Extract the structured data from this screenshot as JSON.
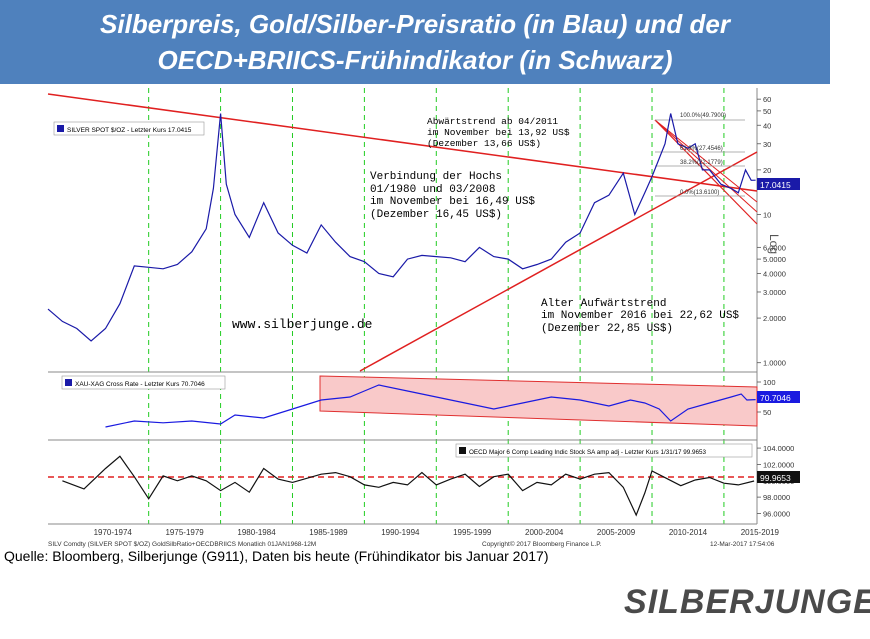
{
  "title_line1": "Silberpreis, Gold/Silber-Preisratio (in Blau) und der",
  "title_line2": "OECD+BRIICS-Frühindikator (in Schwarz)",
  "source": "Quelle: Bloomberg, Silberjunge (G911), Daten bis heute (Frühindikator bis Januar 2017)",
  "logo": "SILBERJUNGE.",
  "chart_data": {
    "type": "line",
    "x_tick_labels": [
      "1970-1974",
      "1975-1979",
      "1980-1984",
      "1985-1989",
      "1990-1994",
      "1995-1999",
      "2000-2004",
      "2005-2009",
      "2010-2014",
      "2015-2019"
    ],
    "panels": [
      {
        "name": "silver",
        "legend": "SILVER SPOT $/OZ - Letzter Kurs 17.0415",
        "scale": "log",
        "y_ticks": [
          "60",
          "50",
          "40",
          "30",
          "20",
          "10",
          "6.0000",
          "5.0000",
          "4.0000",
          "3.0000",
          "2.0000",
          "1.0000"
        ],
        "y_axis_label": "Log",
        "last_value_label": "17.0415",
        "series_points": [
          [
            1968.0,
            2.3
          ],
          [
            1969.0,
            1.9
          ],
          [
            1970.0,
            1.7
          ],
          [
            1971.0,
            1.4
          ],
          [
            1972.0,
            1.7
          ],
          [
            1973.0,
            2.5
          ],
          [
            1974.0,
            4.5
          ],
          [
            1975.0,
            4.4
          ],
          [
            1976.0,
            4.3
          ],
          [
            1977.0,
            4.6
          ],
          [
            1978.0,
            5.6
          ],
          [
            1979.0,
            8.0
          ],
          [
            1979.5,
            15.0
          ],
          [
            1980.0,
            48.0
          ],
          [
            1980.4,
            16.0
          ],
          [
            1981.0,
            10.0
          ],
          [
            1982.0,
            7.0
          ],
          [
            1983.0,
            12.0
          ],
          [
            1984.0,
            7.5
          ],
          [
            1985.0,
            6.2
          ],
          [
            1986.0,
            5.5
          ],
          [
            1987.0,
            8.5
          ],
          [
            1988.0,
            6.5
          ],
          [
            1989.0,
            5.2
          ],
          [
            1990.0,
            4.8
          ],
          [
            1991.0,
            4.0
          ],
          [
            1992.0,
            3.8
          ],
          [
            1993.0,
            5.0
          ],
          [
            1994.0,
            5.3
          ],
          [
            1995.0,
            5.2
          ],
          [
            1996.0,
            5.1
          ],
          [
            1997.0,
            4.8
          ],
          [
            1998.0,
            6.0
          ],
          [
            1999.0,
            5.2
          ],
          [
            2000.0,
            5.0
          ],
          [
            2001.0,
            4.3
          ],
          [
            2002.0,
            4.6
          ],
          [
            2003.0,
            5.0
          ],
          [
            2004.0,
            6.5
          ],
          [
            2005.0,
            7.5
          ],
          [
            2006.0,
            12.0
          ],
          [
            2007.0,
            13.5
          ],
          [
            2008.0,
            19.0
          ],
          [
            2008.8,
            10.0
          ],
          [
            2009.5,
            14.0
          ],
          [
            2010.0,
            18.0
          ],
          [
            2010.9,
            30.0
          ],
          [
            2011.3,
            48.0
          ],
          [
            2011.8,
            30.0
          ],
          [
            2012.5,
            28.0
          ],
          [
            2013.0,
            30.0
          ],
          [
            2013.5,
            20.0
          ],
          [
            2014.0,
            20.0
          ],
          [
            2014.8,
            16.0
          ],
          [
            2015.5,
            15.0
          ],
          [
            2016.0,
            14.0
          ],
          [
            2016.5,
            20.0
          ],
          [
            2016.9,
            17.0
          ],
          [
            2017.2,
            17.04
          ]
        ],
        "annotations": [
          {
            "lines": [
              "Abwärtstrend ab 04/2011",
              "im November bei 13,92 US$",
              "(Dezember 13,66 US$)"
            ]
          },
          {
            "lines": [
              "Verbindung der Hochs",
              "01/1980 und 03/2008",
              "im November bei 16,49 US$",
              "(Dezember 16,45 US$)"
            ]
          },
          {
            "lines": [
              "Alter Aufwärtstrend",
              "im November 2016 bei 22,62 US$",
              "(Dezember 22,85 US$)"
            ]
          }
        ],
        "watermark": "www.silberjunge.de",
        "fib_labels": [
          "100.0%(49.7900)",
          "61.8%(27.4546)",
          "38.2%(22.1779)",
          "0.0%(13.6100)"
        ]
      },
      {
        "name": "ratio",
        "legend": "XAU-XAG Cross Rate - Letzter Kurs 70.7046",
        "y_ticks": [
          "100",
          "50"
        ],
        "last_value_label": "70.7046",
        "series_points": [
          [
            1972.0,
            25
          ],
          [
            1974.0,
            35
          ],
          [
            1976.0,
            32
          ],
          [
            1978.0,
            35
          ],
          [
            1980.0,
            30
          ],
          [
            1981.0,
            45
          ],
          [
            1983.0,
            40
          ],
          [
            1985.0,
            55
          ],
          [
            1987.0,
            70
          ],
          [
            1989.0,
            75
          ],
          [
            1990.0,
            85
          ],
          [
            1991.0,
            95
          ],
          [
            1993.0,
            85
          ],
          [
            1995.0,
            75
          ],
          [
            1997.0,
            65
          ],
          [
            1999.0,
            55
          ],
          [
            2001.0,
            65
          ],
          [
            2003.0,
            75
          ],
          [
            2005.0,
            70
          ],
          [
            2007.0,
            60
          ],
          [
            2008.5,
            70
          ],
          [
            2009.5,
            65
          ],
          [
            2010.5,
            55
          ],
          [
            2011.3,
            35
          ],
          [
            2012.5,
            55
          ],
          [
            2014.0,
            65
          ],
          [
            2015.5,
            75
          ],
          [
            2016.2,
            80
          ],
          [
            2016.6,
            70
          ],
          [
            2017.2,
            70.7
          ]
        ]
      },
      {
        "name": "oecd",
        "legend": "OECD Major 6 Comp Leading Indic Stock SA amp adj - Letzter Kurs 1/31/17 99.9653",
        "y_ticks": [
          "104.0000",
          "102.0000",
          "100.0000",
          "98.0000",
          "96.0000"
        ],
        "last_value_label": "99.9653",
        "reference_line": 100,
        "series_points": [
          [
            1969.0,
            100.0
          ],
          [
            1970.5,
            99.0
          ],
          [
            1972.0,
            101.5
          ],
          [
            1973.0,
            103.0
          ],
          [
            1974.0,
            100.5
          ],
          [
            1975.0,
            97.8
          ],
          [
            1976.0,
            100.6
          ],
          [
            1977.0,
            100.0
          ],
          [
            1978.0,
            100.6
          ],
          [
            1979.0,
            100.0
          ],
          [
            1980.0,
            98.8
          ],
          [
            1981.0,
            99.8
          ],
          [
            1982.0,
            98.6
          ],
          [
            1983.0,
            101.5
          ],
          [
            1984.0,
            100.2
          ],
          [
            1985.0,
            99.8
          ],
          [
            1987.0,
            100.8
          ],
          [
            1988.0,
            101.0
          ],
          [
            1989.0,
            100.5
          ],
          [
            1990.0,
            99.5
          ],
          [
            1991.0,
            99.2
          ],
          [
            1992.0,
            99.8
          ],
          [
            1993.0,
            99.5
          ],
          [
            1994.0,
            101.0
          ],
          [
            1995.0,
            99.5
          ],
          [
            1996.0,
            100.2
          ],
          [
            1997.0,
            100.8
          ],
          [
            1998.0,
            99.3
          ],
          [
            1999.0,
            100.5
          ],
          [
            2000.0,
            100.8
          ],
          [
            2001.0,
            98.8
          ],
          [
            2002.0,
            99.8
          ],
          [
            2003.0,
            99.5
          ],
          [
            2004.0,
            100.8
          ],
          [
            2005.0,
            100.2
          ],
          [
            2006.0,
            100.8
          ],
          [
            2007.0,
            101.0
          ],
          [
            2008.0,
            99.2
          ],
          [
            2008.9,
            95.8
          ],
          [
            2009.5,
            98.5
          ],
          [
            2010.0,
            101.2
          ],
          [
            2011.0,
            100.3
          ],
          [
            2012.0,
            99.4
          ],
          [
            2013.0,
            100.1
          ],
          [
            2014.0,
            100.4
          ],
          [
            2015.0,
            99.7
          ],
          [
            2016.0,
            99.5
          ],
          [
            2017.1,
            99.97
          ]
        ]
      }
    ],
    "footer_left": "SILV Comdty (SILVER SPOT $/OZ) GoldSilbRatio+OECDBRIICS Monatlich 01JAN1968-12M",
    "footer_center": "Copyright© 2017 Bloomberg Finance L.P.",
    "footer_right": "12-Mar-2017 17:54:06"
  }
}
